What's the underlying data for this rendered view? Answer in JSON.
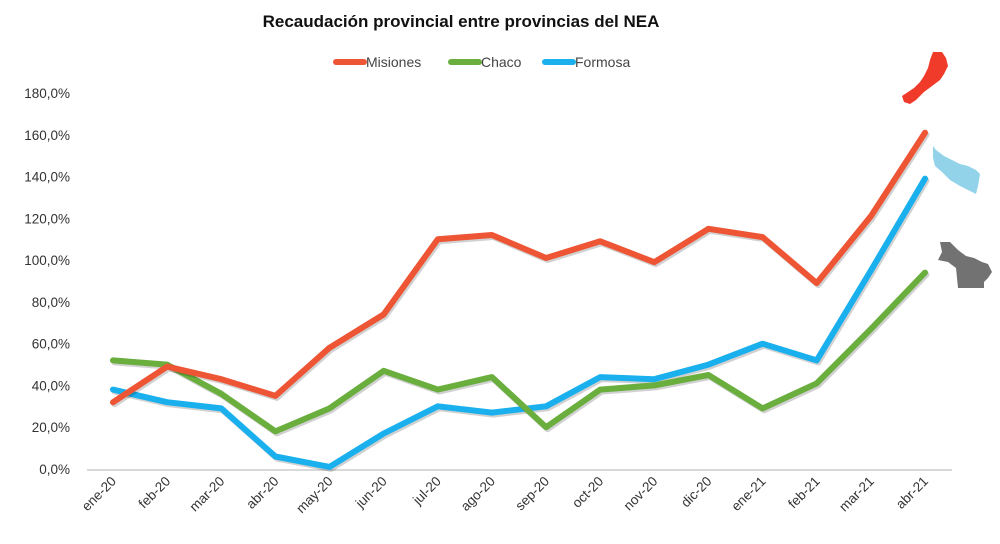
{
  "chart_data": {
    "type": "line",
    "title": "Recaudación provincial entre provincias del NEA",
    "xlabel": "",
    "ylabel": "",
    "ylim": [
      0,
      180
    ],
    "y_ticks": [
      0,
      20,
      40,
      60,
      80,
      100,
      120,
      140,
      160,
      180
    ],
    "y_tick_labels": [
      "0,0%",
      "20,0%",
      "40,0%",
      "60,0%",
      "80,0%",
      "100,0%",
      "120,0%",
      "140,0%",
      "160,0%",
      "180,0%"
    ],
    "grid": false,
    "legend_position": "top",
    "categories": [
      "ene-20",
      "feb-20",
      "mar-20",
      "abr-20",
      "may-20",
      "jun-20",
      "jul-20",
      "ago-20",
      "sep-20",
      "oct-20",
      "nov-20",
      "dic-20",
      "ene-21",
      "feb-21",
      "mar-21",
      "abr-21"
    ],
    "series": [
      {
        "name": "Misiones",
        "color": "#EE5535",
        "values": [
          32,
          49,
          43,
          35,
          58,
          74,
          110,
          112,
          101,
          109,
          99,
          115,
          111,
          89,
          121,
          161
        ]
      },
      {
        "name": "Chaco",
        "color": "#6AAE3E",
        "values": [
          52,
          50,
          36,
          18,
          29,
          47,
          38,
          44,
          20,
          38,
          40,
          45,
          29,
          41,
          67,
          94
        ]
      },
      {
        "name": "Formosa",
        "color": "#1AB0EE",
        "values": [
          38,
          32,
          29,
          6,
          1,
          17,
          30,
          27,
          30,
          44,
          43,
          50,
          60,
          52,
          95,
          139
        ]
      }
    ],
    "annotations": [
      {
        "name": "misiones-map",
        "color": "#F03A2A"
      },
      {
        "name": "formosa-map",
        "color": "#93D3EA"
      },
      {
        "name": "chaco-map",
        "color": "#727272"
      }
    ]
  }
}
